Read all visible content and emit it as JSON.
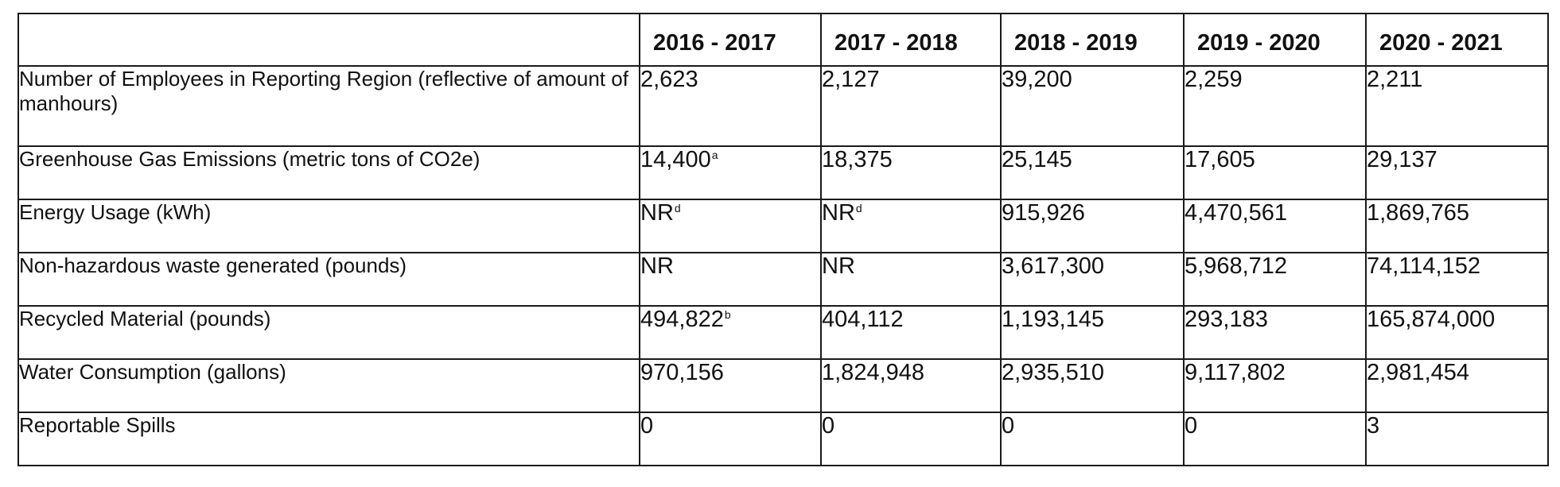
{
  "table": {
    "header": [
      "",
      "2016 - 2017",
      "2017 - 2018",
      "2018 - 2019",
      "2019 - 2020",
      "2020 - 2021"
    ],
    "rows": [
      {
        "label": "Number of Employees in Reporting Region (reflective of amount of manhours)",
        "cells": [
          {
            "value": "2,623",
            "note": ""
          },
          {
            "value": "2,127",
            "note": ""
          },
          {
            "value": "39,200",
            "note": ""
          },
          {
            "value": "2,259",
            "note": ""
          },
          {
            "value": "2,211",
            "note": ""
          }
        ]
      },
      {
        "label": "Greenhouse Gas Emissions (metric tons of CO2e)",
        "cells": [
          {
            "value": "14,400",
            "note": "a"
          },
          {
            "value": "18,375",
            "note": ""
          },
          {
            "value": "25,145",
            "note": ""
          },
          {
            "value": "17,605",
            "note": ""
          },
          {
            "value": "29,137",
            "note": ""
          }
        ]
      },
      {
        "label": "Energy Usage (kWh)",
        "cells": [
          {
            "value": "NR",
            "note": "d"
          },
          {
            "value": "NR",
            "note": "d"
          },
          {
            "value": "915,926",
            "note": ""
          },
          {
            "value": "4,470,561",
            "note": ""
          },
          {
            "value": "1,869,765",
            "note": ""
          }
        ]
      },
      {
        "label": "Non-hazardous waste generated (pounds)",
        "cells": [
          {
            "value": "NR",
            "note": ""
          },
          {
            "value": "NR",
            "note": ""
          },
          {
            "value": "3,617,300",
            "note": ""
          },
          {
            "value": "5,968,712",
            "note": ""
          },
          {
            "value": "74,114,152",
            "note": ""
          }
        ]
      },
      {
        "label": "Recycled Material (pounds)",
        "cells": [
          {
            "value": "494,822",
            "note": "b"
          },
          {
            "value": "404,112",
            "note": ""
          },
          {
            "value": "1,193,145",
            "note": ""
          },
          {
            "value": "293,183",
            "note": ""
          },
          {
            "value": "165,874,000",
            "note": ""
          }
        ]
      },
      {
        "label": "Water Consumption (gallons)",
        "cells": [
          {
            "value": "970,156",
            "note": ""
          },
          {
            "value": "1,824,948",
            "note": ""
          },
          {
            "value": "2,935,510",
            "note": ""
          },
          {
            "value": "9,117,802",
            "note": ""
          },
          {
            "value": "2,981,454",
            "note": ""
          }
        ]
      },
      {
        "label": "Reportable Spills",
        "cells": [
          {
            "value": "0",
            "note": ""
          },
          {
            "value": "0",
            "note": ""
          },
          {
            "value": "0",
            "note": ""
          },
          {
            "value": "0",
            "note": ""
          },
          {
            "value": "3",
            "note": ""
          }
        ]
      }
    ]
  }
}
